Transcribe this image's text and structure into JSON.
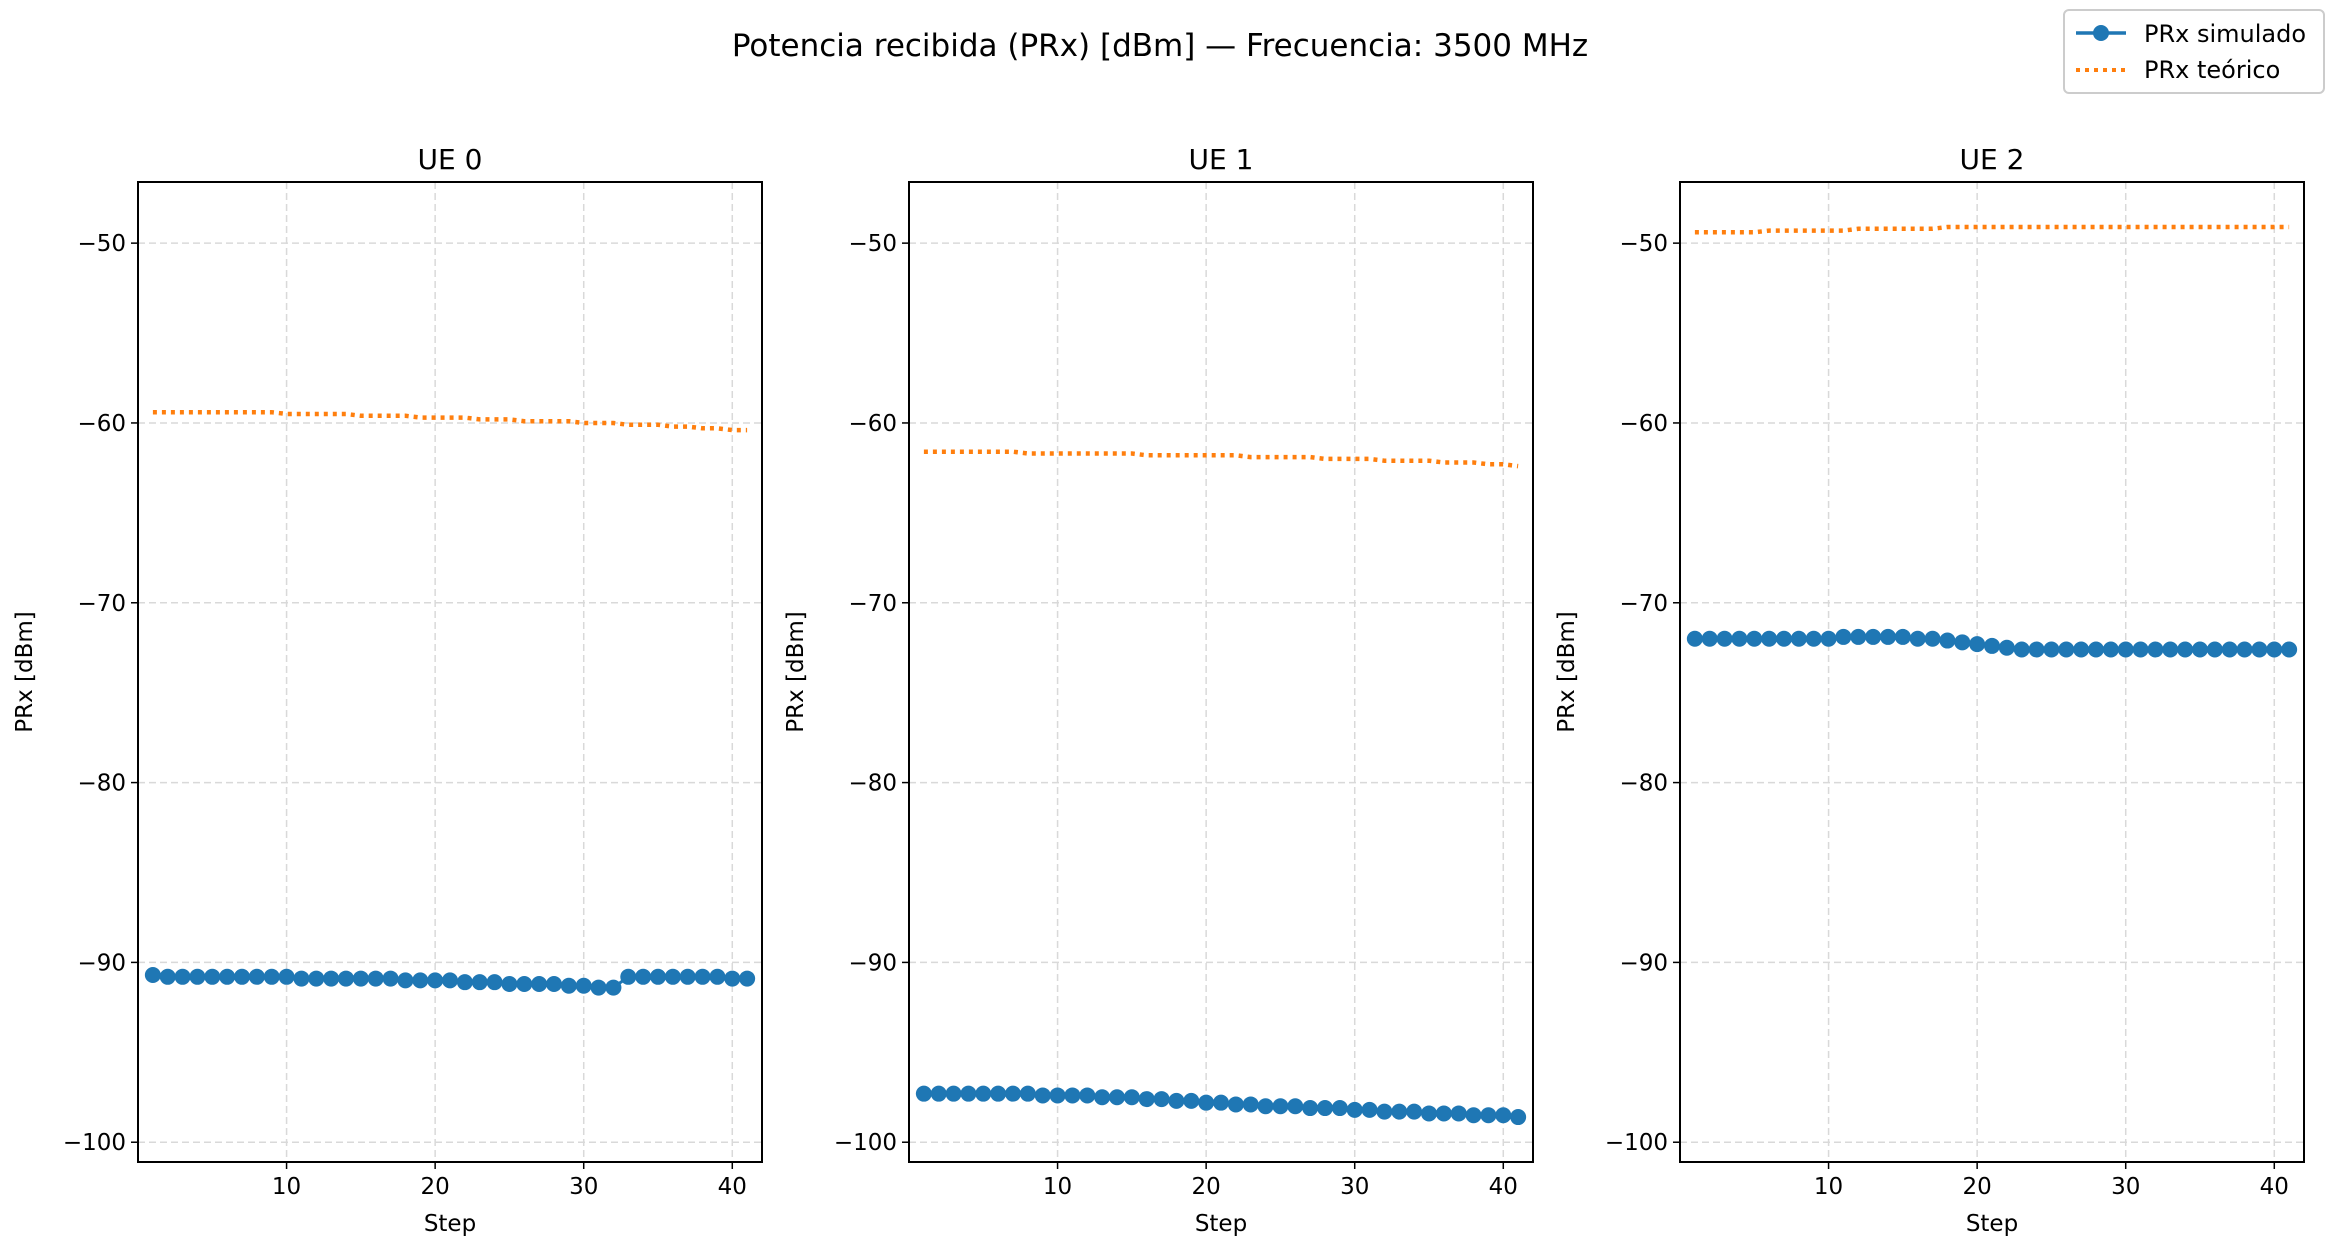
{
  "figure": {
    "suptitle": "Potencia recibida (PRx) [dBm] — Frecuencia: 3500 MHz",
    "legend": {
      "placement": "top-right",
      "entries": [
        "PRx simulado",
        "PRx teórico"
      ]
    }
  },
  "colors": {
    "simulado": "#1f77b4",
    "teorico": "#ff7f0e",
    "grid": "#d9d9d9",
    "axes": "#000000"
  },
  "chart_data": [
    {
      "type": "line",
      "title": "UE 0",
      "xlabel": "Step",
      "ylabel": "PRx [dBm]",
      "xlim": [
        0,
        42
      ],
      "ylim": [
        -101.1,
        -46.6
      ],
      "xticks": [
        10,
        20,
        30,
        40
      ],
      "yticks": [
        -50,
        -60,
        -70,
        -80,
        -90,
        -100
      ],
      "grid": true,
      "x": [
        1,
        2,
        3,
        4,
        5,
        6,
        7,
        8,
        9,
        10,
        11,
        12,
        13,
        14,
        15,
        16,
        17,
        18,
        19,
        20,
        21,
        22,
        23,
        24,
        25,
        26,
        27,
        28,
        29,
        30,
        31,
        32,
        33,
        34,
        35,
        36,
        37,
        38,
        39,
        40,
        41
      ],
      "series": [
        {
          "name": "PRx simulado",
          "style": "solid-marker",
          "values": [
            -90.7,
            -90.8,
            -90.8,
            -90.8,
            -90.8,
            -90.8,
            -90.8,
            -90.8,
            -90.8,
            -90.8,
            -90.9,
            -90.9,
            -90.9,
            -90.9,
            -90.9,
            -90.9,
            -90.9,
            -91.0,
            -91.0,
            -91.0,
            -91.0,
            -91.1,
            -91.1,
            -91.1,
            -91.2,
            -91.2,
            -91.2,
            -91.2,
            -91.3,
            -91.3,
            -91.4,
            -91.4,
            -90.8,
            -90.8,
            -90.8,
            -90.8,
            -90.8,
            -90.8,
            -90.8,
            -90.9,
            -90.9
          ]
        },
        {
          "name": "PRx teórico",
          "style": "dotted",
          "values": [
            -59.4,
            -59.4,
            -59.4,
            -59.4,
            -59.4,
            -59.4,
            -59.4,
            -59.4,
            -59.4,
            -59.5,
            -59.5,
            -59.5,
            -59.5,
            -59.5,
            -59.6,
            -59.6,
            -59.6,
            -59.6,
            -59.7,
            -59.7,
            -59.7,
            -59.7,
            -59.8,
            -59.8,
            -59.8,
            -59.9,
            -59.9,
            -59.9,
            -59.9,
            -60.0,
            -60.0,
            -60.0,
            -60.1,
            -60.1,
            -60.1,
            -60.2,
            -60.2,
            -60.3,
            -60.3,
            -60.4,
            -60.4
          ]
        }
      ]
    },
    {
      "type": "line",
      "title": "UE 1",
      "xlabel": "Step",
      "ylabel": "PRx [dBm]",
      "xlim": [
        0,
        42
      ],
      "ylim": [
        -101.1,
        -46.6
      ],
      "xticks": [
        10,
        20,
        30,
        40
      ],
      "yticks": [
        -50,
        -60,
        -70,
        -80,
        -90,
        -100
      ],
      "grid": true,
      "x": [
        1,
        2,
        3,
        4,
        5,
        6,
        7,
        8,
        9,
        10,
        11,
        12,
        13,
        14,
        15,
        16,
        17,
        18,
        19,
        20,
        21,
        22,
        23,
        24,
        25,
        26,
        27,
        28,
        29,
        30,
        31,
        32,
        33,
        34,
        35,
        36,
        37,
        38,
        39,
        40,
        41
      ],
      "series": [
        {
          "name": "PRx simulado",
          "style": "solid-marker",
          "values": [
            -97.3,
            -97.3,
            -97.3,
            -97.3,
            -97.3,
            -97.3,
            -97.3,
            -97.3,
            -97.4,
            -97.4,
            -97.4,
            -97.4,
            -97.5,
            -97.5,
            -97.5,
            -97.6,
            -97.6,
            -97.7,
            -97.7,
            -97.8,
            -97.8,
            -97.9,
            -97.9,
            -98.0,
            -98.0,
            -98.0,
            -98.1,
            -98.1,
            -98.1,
            -98.2,
            -98.2,
            -98.3,
            -98.3,
            -98.3,
            -98.4,
            -98.4,
            -98.4,
            -98.5,
            -98.5,
            -98.5,
            -98.6
          ]
        },
        {
          "name": "PRx teórico",
          "style": "dotted",
          "values": [
            -61.6,
            -61.6,
            -61.6,
            -61.6,
            -61.6,
            -61.6,
            -61.6,
            -61.7,
            -61.7,
            -61.7,
            -61.7,
            -61.7,
            -61.7,
            -61.7,
            -61.7,
            -61.8,
            -61.8,
            -61.8,
            -61.8,
            -61.8,
            -61.8,
            -61.8,
            -61.9,
            -61.9,
            -61.9,
            -61.9,
            -61.9,
            -62.0,
            -62.0,
            -62.0,
            -62.0,
            -62.1,
            -62.1,
            -62.1,
            -62.1,
            -62.2,
            -62.2,
            -62.2,
            -62.3,
            -62.3,
            -62.4
          ]
        }
      ]
    },
    {
      "type": "line",
      "title": "UE 2",
      "xlabel": "Step",
      "ylabel": "PRx [dBm]",
      "xlim": [
        0,
        42
      ],
      "ylim": [
        -101.1,
        -46.6
      ],
      "xticks": [
        10,
        20,
        30,
        40
      ],
      "yticks": [
        -50,
        -60,
        -70,
        -80,
        -90,
        -100
      ],
      "grid": true,
      "x": [
        1,
        2,
        3,
        4,
        5,
        6,
        7,
        8,
        9,
        10,
        11,
        12,
        13,
        14,
        15,
        16,
        17,
        18,
        19,
        20,
        21,
        22,
        23,
        24,
        25,
        26,
        27,
        28,
        29,
        30,
        31,
        32,
        33,
        34,
        35,
        36,
        37,
        38,
        39,
        40,
        41
      ],
      "series": [
        {
          "name": "PRx simulado",
          "style": "solid-marker",
          "values": [
            -72.0,
            -72.0,
            -72.0,
            -72.0,
            -72.0,
            -72.0,
            -72.0,
            -72.0,
            -72.0,
            -72.0,
            -71.9,
            -71.9,
            -71.9,
            -71.9,
            -71.9,
            -72.0,
            -72.0,
            -72.1,
            -72.2,
            -72.3,
            -72.4,
            -72.5,
            -72.6,
            -72.6,
            -72.6,
            -72.6,
            -72.6,
            -72.6,
            -72.6,
            -72.6,
            -72.6,
            -72.6,
            -72.6,
            -72.6,
            -72.6,
            -72.6,
            -72.6,
            -72.6,
            -72.6,
            -72.6,
            -72.6
          ]
        },
        {
          "name": "PRx teórico",
          "style": "dotted",
          "values": [
            -49.4,
            -49.4,
            -49.4,
            -49.4,
            -49.4,
            -49.3,
            -49.3,
            -49.3,
            -49.3,
            -49.3,
            -49.3,
            -49.2,
            -49.2,
            -49.2,
            -49.2,
            -49.2,
            -49.2,
            -49.1,
            -49.1,
            -49.1,
            -49.1,
            -49.1,
            -49.1,
            -49.1,
            -49.1,
            -49.1,
            -49.1,
            -49.1,
            -49.1,
            -49.1,
            -49.1,
            -49.1,
            -49.1,
            -49.1,
            -49.1,
            -49.1,
            -49.1,
            -49.1,
            -49.1,
            -49.1,
            -49.1
          ]
        }
      ]
    }
  ]
}
